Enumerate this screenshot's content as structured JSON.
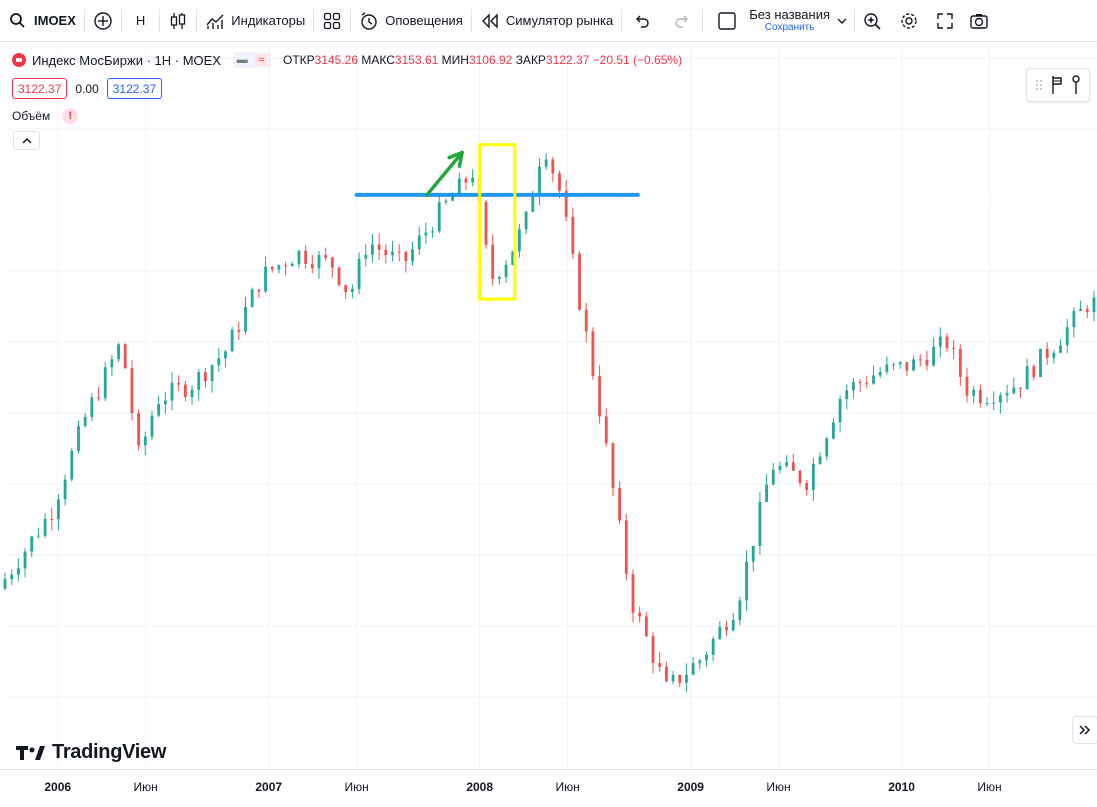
{
  "toolbar": {
    "symbol": "IMOEX",
    "interval": "H",
    "indicators_label": "Индикаторы",
    "alerts_label": "Оповещения",
    "replay_label": "Симулятор рынка",
    "layout_name": "Без названия",
    "layout_save": "Сохранить"
  },
  "legend": {
    "title": "Индекс МосБиржи · 1Н · MOEX",
    "open_label": "ОТКР",
    "open_value": "3145.26",
    "high_label": "МАКС",
    "high_value": "3153.61",
    "low_label": "МИН",
    "low_value": "3106.92",
    "close_label": "ЗАКР",
    "close_value": "3122.37",
    "change": "−20.51 (−0.65%)",
    "bid": "3122.37",
    "spread": "0.00",
    "ask": "3122.37",
    "volume_label": "Объём",
    "warn": "!"
  },
  "branding": {
    "name": "TradingView"
  },
  "colors": {
    "up": "#26a69a",
    "down": "#ef5350",
    "level_line": "#2196f3",
    "highlight_box": "#ffff00",
    "arrow": "#1fa83a",
    "grid": "#f0f3fa"
  },
  "chart_data": {
    "type": "candlestick",
    "x_range": [
      "2005-10",
      "2010-12"
    ],
    "ylim": [
      520,
      2100
    ],
    "grid": true,
    "x_ticks": [
      {
        "label": "2006",
        "date": "2006-01",
        "year": true
      },
      {
        "label": "Июн",
        "date": "2006-06",
        "year": false
      },
      {
        "label": "2007",
        "date": "2007-01",
        "year": true
      },
      {
        "label": "Июн",
        "date": "2007-06",
        "year": false
      },
      {
        "label": "2008",
        "date": "2008-01",
        "year": true
      },
      {
        "label": "Июн",
        "date": "2008-06",
        "year": false
      },
      {
        "label": "2009",
        "date": "2009-01",
        "year": true
      },
      {
        "label": "Июн",
        "date": "2009-06",
        "year": false
      },
      {
        "label": "2010",
        "date": "2010-01",
        "year": true
      },
      {
        "label": "Июн",
        "date": "2010-06",
        "year": false
      }
    ],
    "path": [
      [
        "2005-10",
        860
      ],
      [
        "2006-01",
        1060
      ],
      [
        "2006-03",
        1310
      ],
      [
        "2006-05",
        1500
      ],
      [
        "2006-06",
        1200
      ],
      [
        "2006-07",
        1350
      ],
      [
        "2006-09",
        1390
      ],
      [
        "2006-11",
        1480
      ],
      [
        "2007-01",
        1670
      ],
      [
        "2007-03",
        1730
      ],
      [
        "2007-05",
        1700
      ],
      [
        "2007-06",
        1620
      ],
      [
        "2007-07",
        1760
      ],
      [
        "2007-09",
        1700
      ],
      [
        "2007-11",
        1830
      ],
      [
        "2008-01",
        1940
      ],
      [
        "2008-02",
        1660
      ],
      [
        "2008-03",
        1720
      ],
      [
        "2008-04",
        1810
      ],
      [
        "2008-05",
        2020
      ],
      [
        "2008-06",
        1880
      ],
      [
        "2008-07",
        1620
      ],
      [
        "2008-08",
        1380
      ],
      [
        "2008-10",
        830
      ],
      [
        "2008-12",
        600
      ],
      [
        "2009-02",
        680
      ],
      [
        "2009-04",
        820
      ],
      [
        "2009-06",
        1180
      ],
      [
        "2009-08",
        1140
      ],
      [
        "2009-10",
        1370
      ],
      [
        "2009-12",
        1420
      ],
      [
        "2010-02",
        1440
      ],
      [
        "2010-04",
        1500
      ],
      [
        "2010-05",
        1380
      ],
      [
        "2010-06",
        1360
      ],
      [
        "2010-08",
        1390
      ],
      [
        "2010-10",
        1490
      ],
      [
        "2010-12",
        1600
      ]
    ],
    "annotations": {
      "level_line": {
        "y": 1880,
        "from": "2007-06",
        "to": "2008-10"
      },
      "highlight_box": {
        "from": "2008-01",
        "to": "2008-03",
        "ymin": 1610,
        "ymax": 2010
      },
      "arrow": {
        "from": [
          "2007-10",
          1880
        ],
        "to": [
          "2007-12",
          1990
        ]
      }
    }
  }
}
